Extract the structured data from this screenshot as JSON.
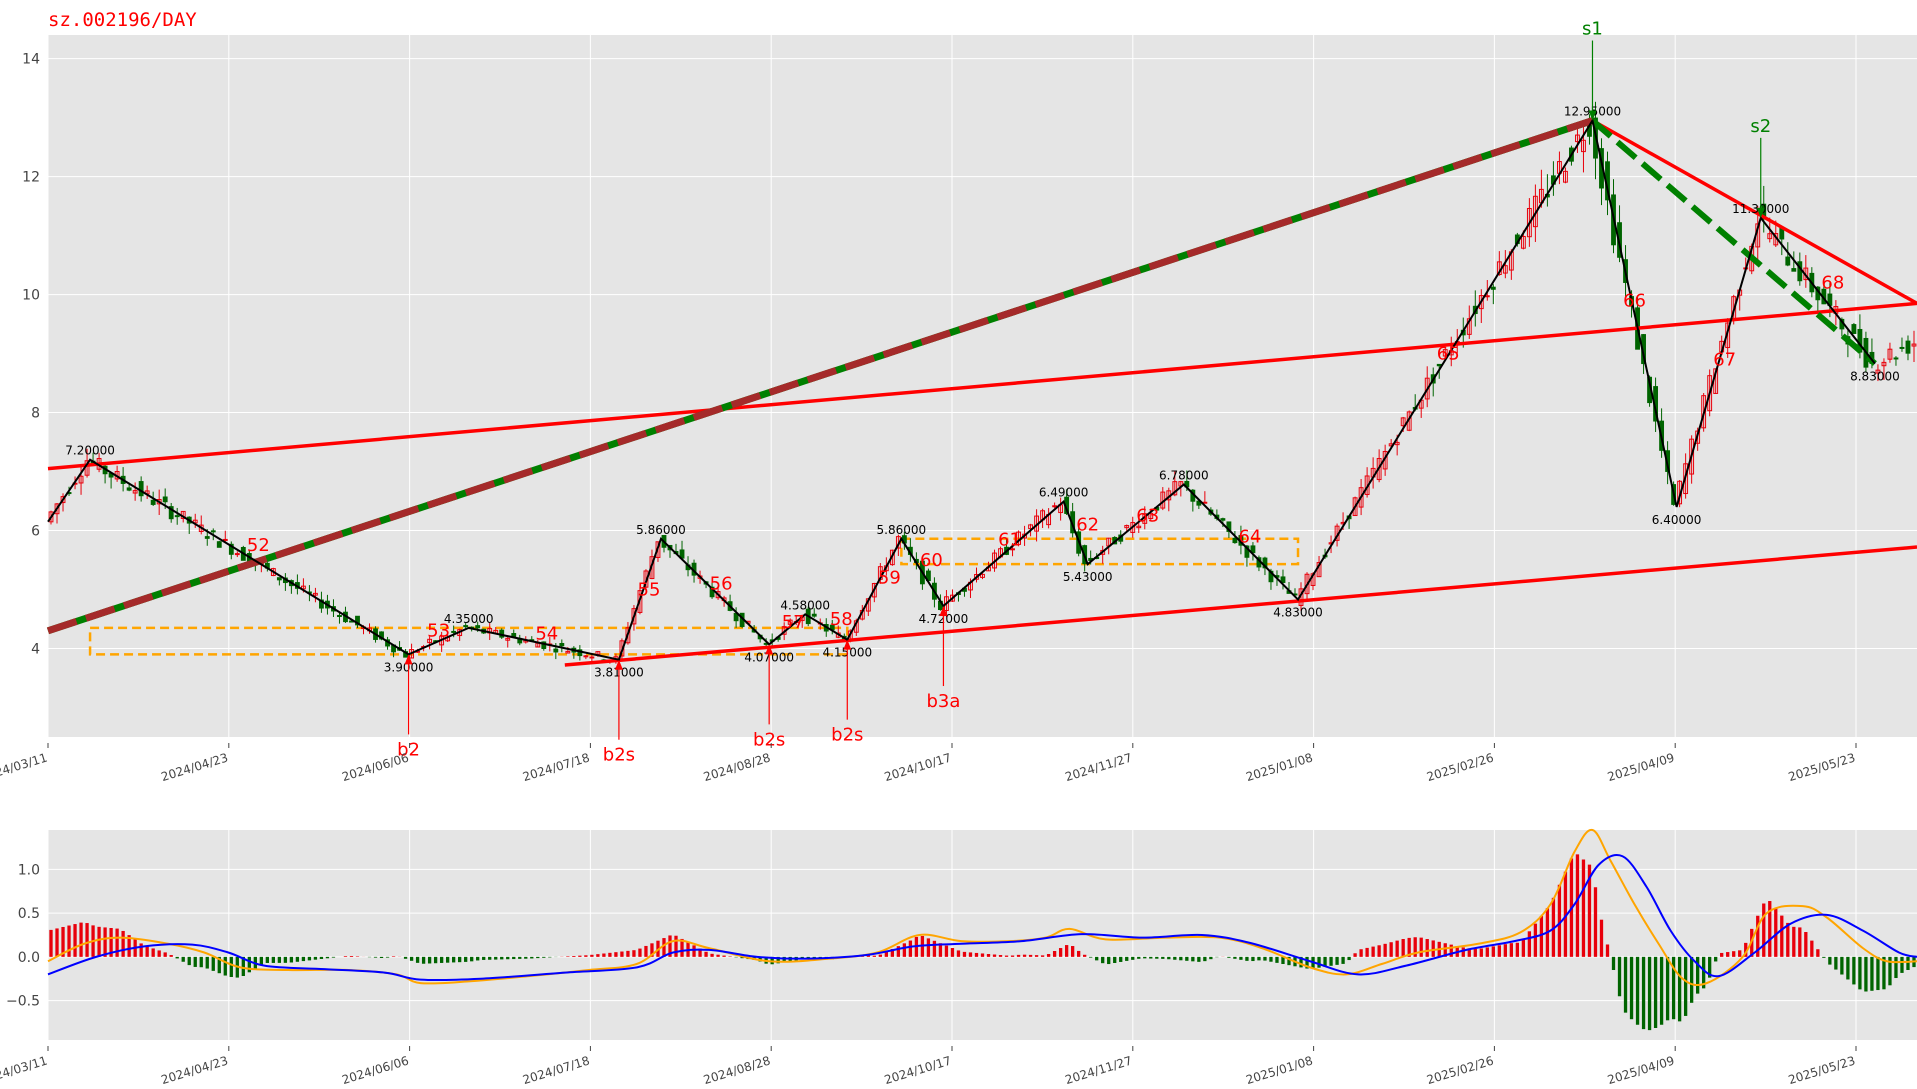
{
  "title": "sz.002196/DAY",
  "colors": {
    "up": "#e8000b",
    "down": "#006400",
    "zigzag": "#000000",
    "trend": "#ff0000",
    "dash_main": "#a52a2a",
    "dash_alt": "#008000",
    "zone": "#ffa500",
    "macd_dif": "#ffa500",
    "macd_dea": "#0000ff",
    "annot_sell": "#008000",
    "annot_buy": "#ff0000",
    "plot_bg": "#e5e5e5",
    "grid": "#ffffff"
  },
  "chart_data": [
    {
      "type": "candlestick",
      "title": "sz.002196/DAY",
      "ylim": [
        2.5,
        14.4
      ],
      "yticks": [
        4,
        6,
        8,
        10,
        12,
        14
      ],
      "xticks": [
        "2024/03/11",
        "2024/04/23",
        "2024/06/06",
        "2024/07/18",
        "2024/08/28",
        "2024/10/17",
        "2024/11/27",
        "2025/01/08",
        "2025/02/26",
        "2025/04/09",
        "2025/05/23"
      ],
      "xlim": [
        0,
        311
      ],
      "grid": true,
      "pivots": [
        {
          "x": 7,
          "y": 7.2,
          "label": "7.20000"
        },
        {
          "x": 60,
          "y": 3.9,
          "label": "3.90000"
        },
        {
          "x": 70,
          "y": 4.35,
          "label": "4.35000"
        },
        {
          "x": 95,
          "y": 3.81,
          "label": "3.81000"
        },
        {
          "x": 102,
          "y": 5.86,
          "label": "5.86000"
        },
        {
          "x": 120,
          "y": 4.07,
          "label": "4.07000"
        },
        {
          "x": 126,
          "y": 4.58,
          "label": "4.58000"
        },
        {
          "x": 133,
          "y": 4.15,
          "label": "4.15000"
        },
        {
          "x": 142,
          "y": 5.86,
          "label": "5.86000"
        },
        {
          "x": 149,
          "y": 4.72,
          "label": "4.72000"
        },
        {
          "x": 169,
          "y": 6.49,
          "label": "6.49000"
        },
        {
          "x": 173,
          "y": 5.43,
          "label": "5.43000"
        },
        {
          "x": 189,
          "y": 6.78,
          "label": "6.78000"
        },
        {
          "x": 208,
          "y": 4.83,
          "label": "4.83000"
        },
        {
          "x": 257,
          "y": 12.95,
          "label": "12.95000"
        },
        {
          "x": 271,
          "y": 6.4,
          "label": "6.40000"
        },
        {
          "x": 285,
          "y": 11.3,
          "label": "11.30000"
        },
        {
          "x": 304,
          "y": 8.83,
          "label": "8.83000"
        }
      ],
      "segment_labels": [
        {
          "x": 35,
          "y": 5.65,
          "text": "52"
        },
        {
          "x": 65,
          "y": 4.2,
          "text": "53"
        },
        {
          "x": 83,
          "y": 4.15,
          "text": "54"
        },
        {
          "x": 100,
          "y": 4.9,
          "text": "55"
        },
        {
          "x": 112,
          "y": 5.0,
          "text": "56"
        },
        {
          "x": 124,
          "y": 4.35,
          "text": "57"
        },
        {
          "x": 132,
          "y": 4.4,
          "text": "58"
        },
        {
          "x": 140,
          "y": 5.1,
          "text": "59"
        },
        {
          "x": 147,
          "y": 5.4,
          "text": "60"
        },
        {
          "x": 160,
          "y": 5.75,
          "text": "61"
        },
        {
          "x": 173,
          "y": 6.0,
          "text": "62"
        },
        {
          "x": 183,
          "y": 6.15,
          "text": "63"
        },
        {
          "x": 200,
          "y": 5.8,
          "text": "64"
        },
        {
          "x": 233,
          "y": 8.9,
          "text": "65"
        },
        {
          "x": 264,
          "y": 9.8,
          "text": "66"
        },
        {
          "x": 279,
          "y": 8.8,
          "text": "67"
        },
        {
          "x": 297,
          "y": 10.1,
          "text": "68"
        }
      ],
      "signals": [
        {
          "x": 60,
          "text": "b2",
          "kind": "buy",
          "y": 3.9
        },
        {
          "x": 95,
          "text": "b2s",
          "kind": "buy",
          "y": 3.81
        },
        {
          "x": 120,
          "text": "b2s",
          "kind": "buy",
          "y": 4.07
        },
        {
          "x": 133,
          "text": "b2s",
          "kind": "buy",
          "y": 4.15
        },
        {
          "x": 149,
          "text": "b3a",
          "kind": "buy",
          "y": 4.72
        },
        {
          "x": 257,
          "text": "s1",
          "kind": "sell",
          "y": 12.95
        },
        {
          "x": 285,
          "text": "s2",
          "kind": "sell",
          "y": 11.3
        }
      ],
      "zones": [
        {
          "x1": 7,
          "x2": 133,
          "y1": 3.9,
          "y2": 4.35
        },
        {
          "x1": 142,
          "x2": 208,
          "y1": 5.43,
          "y2": 5.86
        }
      ],
      "trendlines": [
        {
          "points": [
            [
              0,
              7.05
            ],
            [
              311,
              9.85
            ]
          ],
          "style": "solid"
        },
        {
          "points": [
            [
              86,
              3.72
            ],
            [
              311,
              5.72
            ]
          ],
          "style": "solid"
        },
        {
          "points": [
            [
              257,
              12.95
            ],
            [
              311,
              9.85
            ]
          ],
          "style": "solid"
        },
        {
          "points": [
            [
              0,
              4.3
            ],
            [
              257,
              12.95
            ]
          ],
          "style": "dash-two-tone"
        },
        {
          "points": [
            [
              257,
              12.95
            ],
            [
              304,
              8.83
            ]
          ],
          "style": "dash-green"
        }
      ]
    },
    {
      "type": "macd",
      "ylim": [
        -0.95,
        1.45
      ],
      "yticks": [
        -0.5,
        0.0,
        0.5,
        1.0
      ],
      "ytick_labels": [
        "−0.5",
        "0.0",
        "0.5",
        "1.0"
      ],
      "xticks": [
        "2024/03/11",
        "2024/04/23",
        "2024/06/06",
        "2024/07/18",
        "2024/08/28",
        "2024/10/17",
        "2024/11/27",
        "2025/01/08",
        "2025/02/26",
        "2025/04/09",
        "2025/05/23"
      ],
      "xlim": [
        0,
        311
      ],
      "dif_points": [
        [
          0,
          -0.05
        ],
        [
          6,
          0.15
        ],
        [
          12,
          0.22
        ],
        [
          20,
          0.15
        ],
        [
          26,
          0.05
        ],
        [
          32,
          -0.12
        ],
        [
          40,
          -0.15
        ],
        [
          50,
          -0.15
        ],
        [
          58,
          -0.2
        ],
        [
          62,
          -0.3
        ],
        [
          70,
          -0.28
        ],
        [
          80,
          -0.22
        ],
        [
          90,
          -0.15
        ],
        [
          98,
          -0.08
        ],
        [
          104,
          0.18
        ],
        [
          110,
          0.1
        ],
        [
          120,
          -0.05
        ],
        [
          130,
          -0.02
        ],
        [
          138,
          0.05
        ],
        [
          145,
          0.25
        ],
        [
          152,
          0.18
        ],
        [
          160,
          0.18
        ],
        [
          166,
          0.22
        ],
        [
          170,
          0.32
        ],
        [
          176,
          0.2
        ],
        [
          186,
          0.22
        ],
        [
          195,
          0.22
        ],
        [
          202,
          0.1
        ],
        [
          210,
          -0.12
        ],
        [
          216,
          -0.2
        ],
        [
          222,
          -0.08
        ],
        [
          228,
          0.05
        ],
        [
          238,
          0.15
        ],
        [
          245,
          0.28
        ],
        [
          250,
          0.6
        ],
        [
          254,
          1.2
        ],
        [
          257,
          1.45
        ],
        [
          260,
          1.1
        ],
        [
          264,
          0.6
        ],
        [
          268,
          0.15
        ],
        [
          272,
          -0.25
        ],
        [
          276,
          -0.3
        ],
        [
          282,
          0.0
        ],
        [
          286,
          0.5
        ],
        [
          292,
          0.58
        ],
        [
          296,
          0.45
        ],
        [
          302,
          0.1
        ],
        [
          306,
          -0.05
        ],
        [
          311,
          -0.05
        ]
      ],
      "dea_points": [
        [
          0,
          -0.2
        ],
        [
          8,
          0.0
        ],
        [
          16,
          0.12
        ],
        [
          24,
          0.14
        ],
        [
          30,
          0.05
        ],
        [
          36,
          -0.1
        ],
        [
          46,
          -0.14
        ],
        [
          56,
          -0.18
        ],
        [
          62,
          -0.26
        ],
        [
          72,
          -0.25
        ],
        [
          86,
          -0.18
        ],
        [
          98,
          -0.12
        ],
        [
          104,
          0.05
        ],
        [
          110,
          0.08
        ],
        [
          118,
          0.0
        ],
        [
          126,
          -0.02
        ],
        [
          136,
          0.02
        ],
        [
          144,
          0.12
        ],
        [
          152,
          0.15
        ],
        [
          162,
          0.18
        ],
        [
          172,
          0.26
        ],
        [
          182,
          0.22
        ],
        [
          192,
          0.25
        ],
        [
          200,
          0.16
        ],
        [
          210,
          -0.05
        ],
        [
          218,
          -0.2
        ],
        [
          226,
          -0.1
        ],
        [
          236,
          0.08
        ],
        [
          244,
          0.18
        ],
        [
          250,
          0.3
        ],
        [
          254,
          0.6
        ],
        [
          258,
          1.05
        ],
        [
          262,
          1.15
        ],
        [
          266,
          0.8
        ],
        [
          270,
          0.3
        ],
        [
          274,
          -0.05
        ],
        [
          278,
          -0.22
        ],
        [
          284,
          0.05
        ],
        [
          290,
          0.38
        ],
        [
          296,
          0.48
        ],
        [
          302,
          0.3
        ],
        [
          308,
          0.05
        ],
        [
          311,
          0.0
        ]
      ]
    }
  ]
}
